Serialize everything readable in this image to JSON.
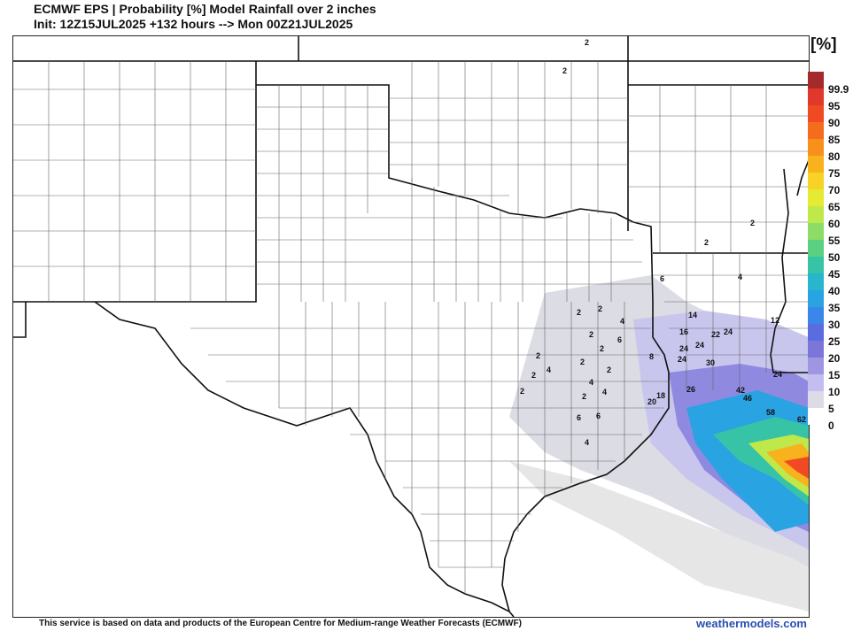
{
  "header": {
    "title_line1": "ECMWF EPS | Probability [%] Model Rainfall over 2 inches",
    "title_line2": "Init: 12Z15JUL2025 +132 hours --> Mon 00Z21JUL2025"
  },
  "legend": {
    "unit": "[%]",
    "levels": [
      {
        "label": "99.9",
        "color": "#a52a2a"
      },
      {
        "label": "95",
        "color": "#e0382a"
      },
      {
        "label": "90",
        "color": "#f04a23"
      },
      {
        "label": "85",
        "color": "#f46d1e"
      },
      {
        "label": "80",
        "color": "#f7911c"
      },
      {
        "label": "75",
        "color": "#f8b21d"
      },
      {
        "label": "70",
        "color": "#f6d324"
      },
      {
        "label": "65",
        "color": "#e5ea33"
      },
      {
        "label": "60",
        "color": "#bfe84a"
      },
      {
        "label": "55",
        "color": "#8ddc65"
      },
      {
        "label": "50",
        "color": "#5bcf82"
      },
      {
        "label": "45",
        "color": "#36c3a6"
      },
      {
        "label": "40",
        "color": "#27b6cb"
      },
      {
        "label": "35",
        "color": "#2aa3e3"
      },
      {
        "label": "30",
        "color": "#3b86e8"
      },
      {
        "label": "25",
        "color": "#5a6ddf"
      },
      {
        "label": "20",
        "color": "#7c76d8"
      },
      {
        "label": "15",
        "color": "#9f96e3"
      },
      {
        "label": "10",
        "color": "#c3bdf0"
      },
      {
        "label": "5",
        "color": "#dddce6"
      },
      {
        "label": "0",
        "color": "#ffffff"
      }
    ]
  },
  "map": {
    "point_values": [
      "2",
      "2",
      "2",
      "2",
      "2",
      "4",
      "2",
      "6",
      "2",
      "4",
      "2",
      "6",
      "2",
      "2",
      "2",
      "4",
      "2",
      "2",
      "4",
      "8",
      "2",
      "4",
      "6",
      "6",
      "4",
      "14",
      "16",
      "22",
      "24",
      "24",
      "24",
      "24",
      "30",
      "26",
      "18",
      "20",
      "24",
      "42",
      "46",
      "58",
      "62",
      "12"
    ]
  },
  "footer": {
    "credit": "This service is based on data and products of the European Centre for Medium-range Weather Forecasts (ECMWF)",
    "brand": "weathermodels.com"
  }
}
